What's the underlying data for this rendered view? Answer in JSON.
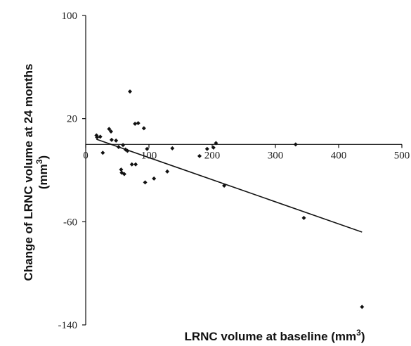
{
  "chart_data": {
    "type": "scatter",
    "xlabel": "LRNC volume at baseline (mm",
    "xlabel_sup": "3",
    "xlabel_end": ")",
    "ylabel_line1": "Change of LRNC volume at 24 months",
    "ylabel_line2": "(mm",
    "ylabel_sup": "3",
    "ylabel_end": ")",
    "xlim": [
      0,
      500
    ],
    "ylim": [
      -140,
      100
    ],
    "x_ticks": [
      0,
      100,
      200,
      300,
      400,
      500
    ],
    "x_tick_labels": [
      "0",
      "100",
      "200",
      "300",
      "400",
      "500"
    ],
    "y_ticks": [
      100,
      20,
      -60,
      -140
    ],
    "y_tick_labels": [
      "100",
      "20",
      "-60",
      "-140"
    ],
    "points": [
      {
        "x": 17,
        "y": 7
      },
      {
        "x": 18,
        "y": 5.5
      },
      {
        "x": 23,
        "y": 6
      },
      {
        "x": 27,
        "y": -6.5
      },
      {
        "x": 37,
        "y": 12
      },
      {
        "x": 40,
        "y": 10
      },
      {
        "x": 41,
        "y": 3.5
      },
      {
        "x": 48,
        "y": 3
      },
      {
        "x": 52,
        "y": -2
      },
      {
        "x": 56,
        "y": -19.5
      },
      {
        "x": 57,
        "y": -22
      },
      {
        "x": 59,
        "y": -0.5
      },
      {
        "x": 61,
        "y": -23
      },
      {
        "x": 63,
        "y": -4
      },
      {
        "x": 66,
        "y": -5
      },
      {
        "x": 70,
        "y": 41
      },
      {
        "x": 73,
        "y": -15.5
      },
      {
        "x": 78,
        "y": 16
      },
      {
        "x": 79,
        "y": -15.5
      },
      {
        "x": 83,
        "y": 16.5
      },
      {
        "x": 92,
        "y": 12.5
      },
      {
        "x": 94,
        "y": -29.5
      },
      {
        "x": 97,
        "y": -3.5
      },
      {
        "x": 108,
        "y": -26.5
      },
      {
        "x": 129,
        "y": -21
      },
      {
        "x": 137,
        "y": -3
      },
      {
        "x": 180,
        "y": -9
      },
      {
        "x": 192,
        "y": -3.5
      },
      {
        "x": 202,
        "y": -2.5
      },
      {
        "x": 206,
        "y": 1
      },
      {
        "x": 219,
        "y": -32
      },
      {
        "x": 332,
        "y": 0
      },
      {
        "x": 345,
        "y": -57
      },
      {
        "x": 437,
        "y": -126
      }
    ],
    "trendline": {
      "x": [
        17,
        437
      ],
      "y": [
        4,
        -68
      ]
    }
  }
}
